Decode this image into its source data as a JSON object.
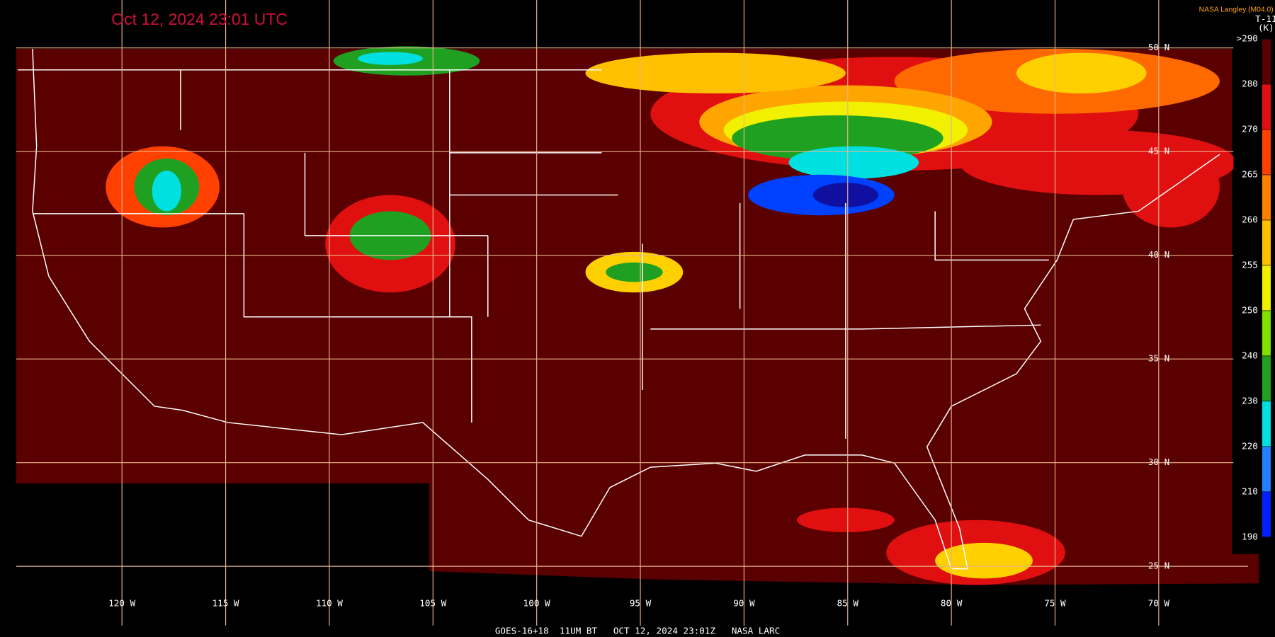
{
  "header": {
    "title": "Oct 12, 2024 23:01 UTC",
    "credit": "NASA Langley (M04.0)"
  },
  "colorbar": {
    "title": "T-11",
    "unit": "(K)",
    "labels": [
      ">290",
      "280",
      "270",
      "265",
      "260",
      "255",
      "250",
      "240",
      "230",
      "220",
      "210",
      "190"
    ]
  },
  "latitude_labels": [
    "50 N",
    "45 N",
    "40 N",
    "35 N",
    "30 N",
    "25 N"
  ],
  "longitude_labels": [
    "120 W",
    "115 W",
    "110 W",
    "105 W",
    "100 W",
    "95 W",
    "90 W",
    "85 W",
    "80 W",
    "75 W",
    "70 W"
  ],
  "footer": "GOES-16+18  11UM BT   OCT 12, 2024 23:01Z   NASA LARC"
}
